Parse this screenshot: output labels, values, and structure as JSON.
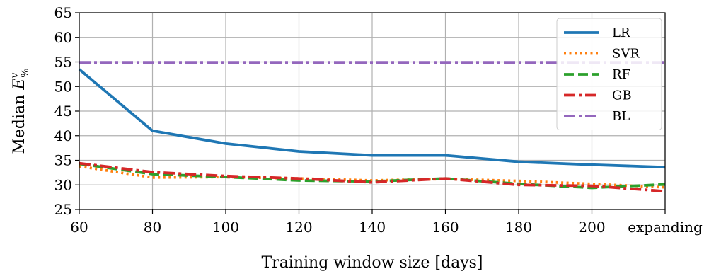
{
  "chart_data": {
    "type": "line",
    "xlabel": "Training window size [days]",
    "ylabel_main": "Median ",
    "ylabel_symbol": "E",
    "ylabel_sup": "v",
    "ylabel_sub": "%",
    "categories": [
      "60",
      "80",
      "100",
      "120",
      "140",
      "160",
      "180",
      "200",
      "expanding"
    ],
    "ylim": [
      25,
      65
    ],
    "yticks": [
      25,
      30,
      35,
      40,
      45,
      50,
      55,
      60,
      65
    ],
    "grid": true,
    "legend_position": "top-right",
    "series": [
      {
        "name": "LR",
        "color": "#1f77b4",
        "style": "solid",
        "values": [
          53.5,
          41.0,
          38.4,
          36.8,
          36.0,
          36.0,
          34.7,
          34.1,
          33.6
        ]
      },
      {
        "name": "SVR",
        "color": "#ff7f0e",
        "style": "dotted",
        "values": [
          33.8,
          31.5,
          31.6,
          31.3,
          30.9,
          31.2,
          30.8,
          30.2,
          29.5
        ]
      },
      {
        "name": "RF",
        "color": "#2ca02c",
        "style": "dashed",
        "values": [
          34.3,
          32.2,
          31.6,
          30.9,
          30.7,
          31.3,
          30.2,
          29.4,
          30.1
        ]
      },
      {
        "name": "GB",
        "color": "#d62728",
        "style": "dashdot",
        "values": [
          34.4,
          32.6,
          31.8,
          31.3,
          30.5,
          31.3,
          30.0,
          29.8,
          28.7
        ]
      },
      {
        "name": "BL",
        "color": "#9467bd",
        "style": "dashdot",
        "values": [
          54.9,
          54.9,
          54.9,
          54.9,
          54.9,
          54.9,
          54.9,
          54.9,
          54.9
        ]
      }
    ]
  }
}
